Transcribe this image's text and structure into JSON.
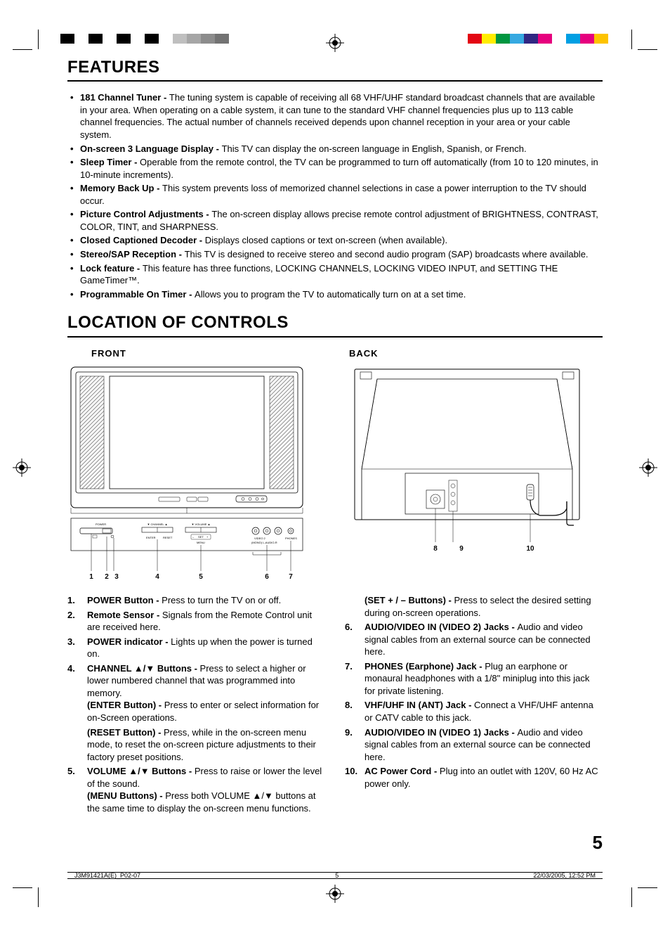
{
  "crop_colors_left": [
    "#000000",
    "#ffffff",
    "#000000",
    "#ffffff",
    "#000000",
    "#ffffff",
    "#000000",
    "#ffffff",
    "#bfbfbf",
    "#a6a6a6",
    "#8c8c8c",
    "#737373"
  ],
  "crop_colors_right": [
    "#e30613",
    "#ffed00",
    "#009640",
    "#36a9e1",
    "#312783",
    "#e6007e",
    "#ffffff",
    "#009fe3",
    "#e6007e",
    "#fdc300"
  ],
  "sections": {
    "features_title": "Features",
    "controls_title": "Location of Controls"
  },
  "panel_titles": {
    "front": "FRONT",
    "back": "BACK"
  },
  "features": [
    {
      "title": "181 Channel Tuner - ",
      "body": "The tuning system is capable of receiving all 68 VHF/UHF standard broadcast channels that are available in your area. When operating on a cable system, it can tune to the standard VHF channel frequencies plus up to 113 cable channel frequencies. The actual number of channels received depends upon channel reception in your area or your cable system."
    },
    {
      "title": "On-screen 3 Language Display - ",
      "body": "This TV can display the on-screen language in English, Spanish, or French."
    },
    {
      "title": "Sleep Timer - ",
      "body": "Operable from the remote control, the TV can be programmed to turn off automatically (from 10 to 120 minutes, in 10-minute increments)."
    },
    {
      "title": "Memory Back Up - ",
      "body": "This system prevents loss of memorized channel selections in case a power interruption to the TV should occur."
    },
    {
      "title": "Picture Control Adjustments - ",
      "body": "The on-screen display allows precise remote control adjustment of BRIGHTNESS, CONTRAST, COLOR, TINT, and SHARPNESS."
    },
    {
      "title": "Closed Captioned Decoder - ",
      "body": "Displays closed captions or text on-screen (when available)."
    },
    {
      "title": "Stereo/SAP Reception - ",
      "body": "This TV is designed to receive stereo and second audio program (SAP) broadcasts where available."
    },
    {
      "title": "Lock feature - ",
      "body": "This feature has three functions, LOCKING CHANNELS, LOCKING VIDEO INPUT, and SETTING THE GameTimer™."
    },
    {
      "title": "Programmable On Timer - ",
      "body": "Allows you to program the TV to automatically turn on at a set time."
    }
  ],
  "front_numbers": [
    "1",
    "2",
    "3",
    "4",
    "5",
    "6",
    "7"
  ],
  "back_numbers": [
    "8",
    "9",
    "10"
  ],
  "front_labels": {
    "power": "POWER",
    "channel": "▼ CHANNEL ▲",
    "volume": "▼ VOLUME ▲",
    "enter": "ENTER",
    "reset": "RESET",
    "set": "SET",
    "menu": "MENU",
    "video2l": "VIDEO 2",
    "video2_in": "(MONO) L - AUDIO - R",
    "phones": "PHONES"
  },
  "controls_left": [
    {
      "title": "POWER Button - ",
      "body": "Press to turn the TV on or off."
    },
    {
      "title": "Remote Sensor - ",
      "body": "Signals from the Remote Control unit are received here."
    },
    {
      "title": "POWER indicator - ",
      "body": "Lights up when the power is turned on."
    },
    {
      "title": "CHANNEL ▲/▼ Buttons - ",
      "body": "Press to select a higher or lower numbered channel that was programmed into memory.",
      "subs": [
        {
          "title": "(ENTER Button) - ",
          "body": "Press to enter or select information for on-Screen operations."
        },
        {
          "title": "(RESET Button) - ",
          "body": "Press, while in the on-screen menu mode, to reset the on-screen picture adjustments to their factory preset positions."
        }
      ]
    },
    {
      "title": "VOLUME ▲/▼ Buttons - ",
      "body": "Press to raise or lower the level of the sound.",
      "subs": [
        {
          "title": "(MENU Buttons) - ",
          "body": "Press both VOLUME ▲/▼ buttons at the same time to display the on-screen menu functions."
        }
      ]
    }
  ],
  "controls_right_pre": {
    "title": "(SET + / – Buttons) - ",
    "body": "Press to select the desired setting during on-screen operations."
  },
  "controls_right": [
    {
      "title": "AUDIO/VIDEO IN (VIDEO 2) Jacks - ",
      "body": "Audio and video signal cables from an external source can be connected here."
    },
    {
      "title": "PHONES (Earphone) Jack - ",
      "body": "Plug an earphone or monaural headphones with a 1/8\" miniplug into this jack for private listening."
    },
    {
      "title": "VHF/UHF IN (ANT) Jack - ",
      "body": "Connect a VHF/UHF antenna or CATV cable to this jack."
    },
    {
      "title": "AUDIO/VIDEO IN (VIDEO 1) Jacks - ",
      "body": "Audio and video signal cables from an external source can be connected here."
    },
    {
      "title": "AC Power Cord - ",
      "body": "Plug into an outlet with 120V, 60 Hz AC power only."
    }
  ],
  "page_number": "5",
  "footer": {
    "doc": "J3M91421A(E)_P02-07",
    "page": "5",
    "date": "22/03/2005, 12:52 PM"
  },
  "colors": {
    "text": "#000000",
    "bg": "#ffffff",
    "hatch": "#999999"
  }
}
